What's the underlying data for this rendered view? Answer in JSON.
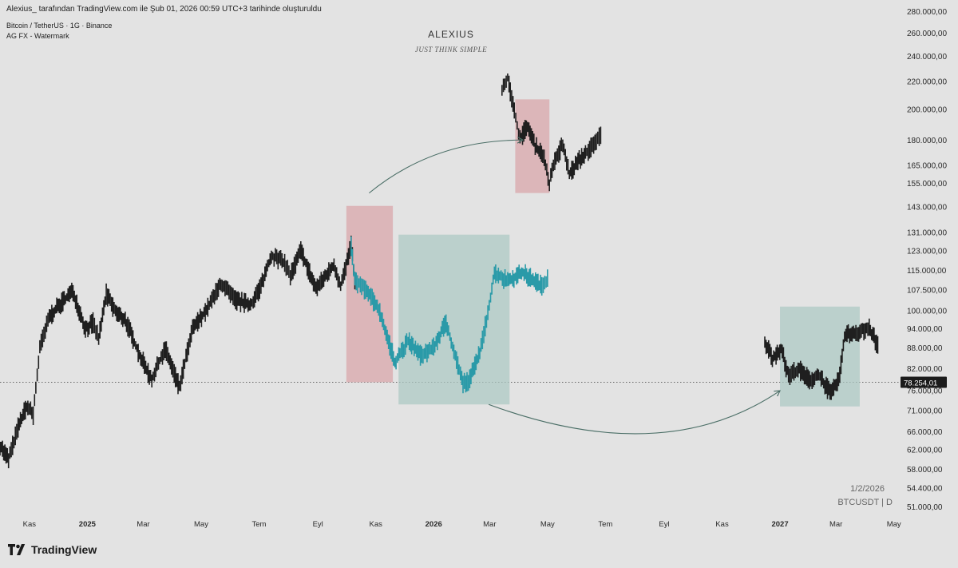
{
  "header": {
    "published_line": "Alexius_ tarafından TradingView.com ile Şub 01, 2026 00:59 UTC+3 tarihinde oluşturuldu",
    "symbol_line": "Bitcoin / TetherUS · 1G · Binance",
    "indicator_line": "AG FX - Watermark"
  },
  "watermark": {
    "title": "ALEXIUS",
    "subtitle": "JUST THINK SIMPLE"
  },
  "footer": {
    "date": "1/2/2026",
    "symbol": "BTCUSDT | D",
    "brand": "TradingView"
  },
  "colors": {
    "background": "#e3e3e3",
    "candles": "#1f1f1f",
    "projection": "#2a9aa8",
    "red_zone": "#d9a3a6",
    "green_zone": "#a9c7c2",
    "arrow": "#4a6e66",
    "price_tag": "#1b1b1b"
  },
  "icons": {
    "brand_logo": "tradingview-logo-icon"
  },
  "chart_data": {
    "type": "line",
    "scale": "log",
    "title": "",
    "xlabel": "",
    "ylabel": "",
    "x_axis": {
      "range": [
        "2024-10-01",
        "2027-05-08"
      ],
      "ticks": [
        {
          "date": "2024-11-01",
          "label": "Kas"
        },
        {
          "date": "2025-01-01",
          "label": "2025"
        },
        {
          "date": "2025-03-01",
          "label": "Mar"
        },
        {
          "date": "2025-05-01",
          "label": "May"
        },
        {
          "date": "2025-07-01",
          "label": "Tem"
        },
        {
          "date": "2025-09-01",
          "label": "Eyl"
        },
        {
          "date": "2025-11-01",
          "label": "Kas"
        },
        {
          "date": "2026-01-01",
          "label": "2026"
        },
        {
          "date": "2026-03-01",
          "label": "Mar"
        },
        {
          "date": "2026-05-01",
          "label": "May"
        },
        {
          "date": "2026-07-01",
          "label": "Tem"
        },
        {
          "date": "2026-09-01",
          "label": "Eyl"
        },
        {
          "date": "2026-11-01",
          "label": "Kas"
        },
        {
          "date": "2027-01-01",
          "label": "2027"
        },
        {
          "date": "2027-03-01",
          "label": "Mar"
        },
        {
          "date": "2027-05-01",
          "label": "May"
        }
      ]
    },
    "y_axis": {
      "range": [
        47000,
        285000
      ],
      "ticks": [
        {
          "value": 51000,
          "label": "51.000,00"
        },
        {
          "value": 54400,
          "label": "54.400,00"
        },
        {
          "value": 58000,
          "label": "58.000,00"
        },
        {
          "value": 62000,
          "label": "62.000,00"
        },
        {
          "value": 66000,
          "label": "66.000,00"
        },
        {
          "value": 71000,
          "label": "71.000,00"
        },
        {
          "value": 76000,
          "label": "76.000,00"
        },
        {
          "value": 82000,
          "label": "82.000,00"
        },
        {
          "value": 88000,
          "label": "88.000,00"
        },
        {
          "value": 94000,
          "label": "94.000,00"
        },
        {
          "value": 100000,
          "label": "100.000,00"
        },
        {
          "value": 107500,
          "label": "107.500,00"
        },
        {
          "value": 115000,
          "label": "115.000,00"
        },
        {
          "value": 123000,
          "label": "123.000,00"
        },
        {
          "value": 131000,
          "label": "131.000,00"
        },
        {
          "value": 143000,
          "label": "143.000,00"
        },
        {
          "value": 155000,
          "label": "155.000,00"
        },
        {
          "value": 165000,
          "label": "165.000,00"
        },
        {
          "value": 180000,
          "label": "180.000,00"
        },
        {
          "value": 200000,
          "label": "200.000,00"
        },
        {
          "value": 220000,
          "label": "220.000,00"
        },
        {
          "value": 240000,
          "label": "240.000,00"
        },
        {
          "value": 260000,
          "label": "260.000,00"
        },
        {
          "value": 280000,
          "label": "280.000,00"
        }
      ]
    },
    "current_price": {
      "value": 78254.01,
      "label": "78.254,01"
    },
    "series": [
      {
        "name": "",
        "color": "#1f1f1f",
        "points": [
          [
            "2024-10-01",
            63000
          ],
          [
            "2024-10-10",
            60000
          ],
          [
            "2024-10-20",
            67000
          ],
          [
            "2024-10-29",
            72000
          ],
          [
            "2024-11-05",
            70000
          ],
          [
            "2024-11-12",
            88000
          ],
          [
            "2024-11-22",
            98000
          ],
          [
            "2024-12-05",
            103000
          ],
          [
            "2024-12-17",
            107000
          ],
          [
            "2024-12-30",
            94000
          ],
          [
            "2025-01-07",
            96000
          ],
          [
            "2025-01-13",
            91000
          ],
          [
            "2025-01-21",
            106000
          ],
          [
            "2025-02-01",
            99000
          ],
          [
            "2025-02-10",
            97000
          ],
          [
            "2025-02-25",
            86000
          ],
          [
            "2025-03-10",
            79000
          ],
          [
            "2025-03-24",
            88000
          ],
          [
            "2025-04-08",
            77000
          ],
          [
            "2025-04-22",
            94000
          ],
          [
            "2025-05-08",
            101000
          ],
          [
            "2025-05-22",
            110000
          ],
          [
            "2025-06-05",
            104000
          ],
          [
            "2025-06-22",
            102000
          ],
          [
            "2025-07-03",
            109000
          ],
          [
            "2025-07-14",
            121000
          ],
          [
            "2025-07-28",
            118000
          ],
          [
            "2025-08-03",
            113000
          ],
          [
            "2025-08-14",
            123000
          ],
          [
            "2025-08-30",
            108000
          ],
          [
            "2025-09-18",
            117000
          ],
          [
            "2025-09-25",
            109000
          ],
          [
            "2025-10-06",
            125000
          ],
          [
            "2025-10-10",
            111000
          ]
        ]
      },
      {
        "name": "",
        "color": "#2a9aa8",
        "points": [
          [
            "2025-10-06",
            125000
          ],
          [
            "2025-10-10",
            111000
          ],
          [
            "2025-10-20",
            108000
          ],
          [
            "2025-11-04",
            101000
          ],
          [
            "2025-11-21",
            84000
          ],
          [
            "2025-12-05",
            90000
          ],
          [
            "2025-12-18",
            86000
          ],
          [
            "2026-01-01",
            88000
          ],
          [
            "2026-01-14",
            96000
          ],
          [
            "2026-02-01",
            78000
          ],
          [
            "2026-02-08",
            79000
          ],
          [
            "2026-02-20",
            88000
          ],
          [
            "2026-03-02",
            105000
          ],
          [
            "2026-03-06",
            114000
          ],
          [
            "2026-03-20",
            111000
          ],
          [
            "2026-04-05",
            114000
          ],
          [
            "2026-04-25",
            109000
          ],
          [
            "2026-05-01",
            112000
          ]
        ]
      },
      {
        "name": "",
        "color": "#1f1f1f",
        "points": [
          [
            "2026-03-14",
            215000
          ],
          [
            "2026-03-20",
            223000
          ],
          [
            "2026-03-27",
            198000
          ],
          [
            "2026-04-02",
            181000
          ],
          [
            "2026-04-10",
            189000
          ],
          [
            "2026-04-18",
            176000
          ],
          [
            "2026-04-26",
            172000
          ],
          [
            "2026-05-03",
            155000
          ],
          [
            "2026-05-10",
            170000
          ],
          [
            "2026-05-17",
            177000
          ],
          [
            "2026-05-24",
            160000
          ],
          [
            "2026-06-02",
            167000
          ],
          [
            "2026-06-10",
            172000
          ],
          [
            "2026-06-20",
            178000
          ],
          [
            "2026-06-26",
            183000
          ]
        ]
      },
      {
        "name": "",
        "color": "#1f1f1f",
        "points": [
          [
            "2026-12-16",
            90000
          ],
          [
            "2026-12-24",
            85000
          ],
          [
            "2027-01-02",
            88000
          ],
          [
            "2027-01-10",
            80000
          ],
          [
            "2027-01-20",
            82000
          ],
          [
            "2027-02-01",
            79000
          ],
          [
            "2027-02-12",
            80000
          ],
          [
            "2027-02-24",
            75000
          ],
          [
            "2027-03-05",
            80000
          ],
          [
            "2027-03-10",
            92000
          ],
          [
            "2027-03-22",
            93000
          ],
          [
            "2027-04-05",
            94000
          ],
          [
            "2027-04-14",
            89000
          ]
        ]
      }
    ],
    "zones": [
      {
        "kind": "red",
        "x": [
          "2025-10-01",
          "2025-11-19"
        ],
        "y": [
          78254,
          143500
        ]
      },
      {
        "kind": "green",
        "x": [
          "2025-11-25",
          "2026-03-22"
        ],
        "y": [
          72500,
          130000
        ]
      },
      {
        "kind": "red",
        "x": [
          "2026-03-28",
          "2026-05-03"
        ],
        "y": [
          150000,
          207000
        ]
      },
      {
        "kind": "green",
        "x": [
          "2027-01-01",
          "2027-03-26"
        ],
        "y": [
          72000,
          101500
        ]
      }
    ],
    "arrows": [
      {
        "from": [
          "2025-10-25",
          150000
        ],
        "via": [
          "2026-01-01",
          180000
        ],
        "to": [
          "2026-04-05",
          180000
        ]
      },
      {
        "from": [
          "2026-02-28",
          72500
        ],
        "via": [
          "2026-09-01",
          58000
        ],
        "to": [
          "2027-01-01",
          76000
        ]
      }
    ],
    "grid": false,
    "legend": "none"
  }
}
